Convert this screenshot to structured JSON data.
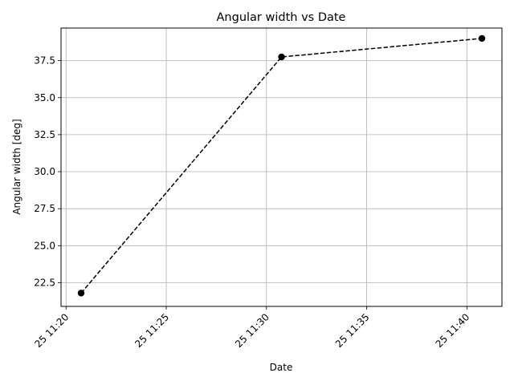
{
  "chart_data": {
    "type": "line",
    "title": "Angular width vs Date",
    "xlabel": "Date",
    "ylabel": "Angular width [deg]",
    "x_axis_type": "time",
    "x_ticks": [
      "25 11:20",
      "25 11:25",
      "25 11:30",
      "25 11:35",
      "25 11:40"
    ],
    "y_ticks": [
      "22.5",
      "25.0",
      "27.5",
      "30.0",
      "32.5",
      "35.0",
      "37.5"
    ],
    "xlim": [
      "11:19:45",
      "11:41:45"
    ],
    "ylim": [
      20.9,
      39.7
    ],
    "grid": true,
    "legend": "none",
    "series": [
      {
        "x": [
          "11:20:45",
          "11:30:45",
          "11:40:45"
        ],
        "values": [
          21.8,
          37.75,
          39.0
        ],
        "color": "#000000",
        "line_style": "dashed",
        "marker": "circle"
      }
    ]
  }
}
